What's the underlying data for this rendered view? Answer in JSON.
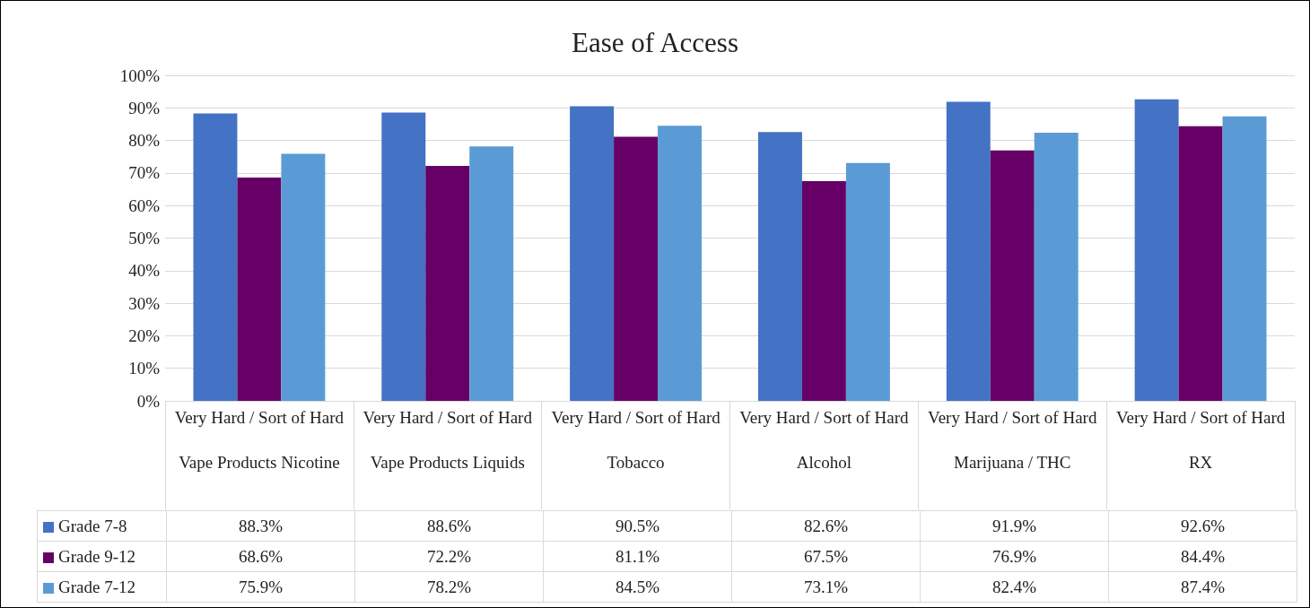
{
  "chart_data": {
    "type": "bar",
    "title": "Ease of Access",
    "categories": [
      "Very Hard / Sort of Hard\nVape Products Nicotine",
      "Very Hard / Sort of Hard\nVape Products Liquids",
      "Very Hard / Sort of Hard\nTobacco",
      "Very Hard / Sort of Hard\nAlcohol",
      "Very Hard / Sort of Hard\nMarijuana / THC",
      "Very Hard / Sort of Hard\nRX"
    ],
    "series": [
      {
        "name": "Grade  7-8",
        "color": "#4472c4",
        "values": [
          88.3,
          88.6,
          90.5,
          82.6,
          91.9,
          92.6
        ],
        "value_labels": [
          "88.3%",
          "88.6%",
          "90.5%",
          "82.6%",
          "91.9%",
          "92.6%"
        ]
      },
      {
        "name": "Grade  9-12",
        "color": "#660066",
        "values": [
          68.6,
          72.2,
          81.1,
          67.5,
          76.9,
          84.4
        ],
        "value_labels": [
          "68.6%",
          "72.2%",
          "81.1%",
          "67.5%",
          "76.9%",
          "84.4%"
        ]
      },
      {
        "name": "Grade  7-12",
        "color": "#5b9bd5",
        "values": [
          75.9,
          78.2,
          84.5,
          73.1,
          82.4,
          87.4
        ],
        "value_labels": [
          "75.9%",
          "78.2%",
          "84.5%",
          "73.1%",
          "82.4%",
          "87.4%"
        ]
      }
    ],
    "ylim": [
      0,
      100
    ],
    "yticks": [
      {
        "value": 0,
        "label": "0%"
      },
      {
        "value": 10,
        "label": "10%"
      },
      {
        "value": 20,
        "label": "20%"
      },
      {
        "value": 30,
        "label": "30%"
      },
      {
        "value": 40,
        "label": "40%"
      },
      {
        "value": 50,
        "label": "50%"
      },
      {
        "value": 60,
        "label": "60%"
      },
      {
        "value": 70,
        "label": "70%"
      },
      {
        "value": 80,
        "label": "80%"
      },
      {
        "value": 90,
        "label": "90%"
      },
      {
        "value": 100,
        "label": "100%"
      }
    ],
    "grid": "y",
    "legend": "bottom left"
  }
}
